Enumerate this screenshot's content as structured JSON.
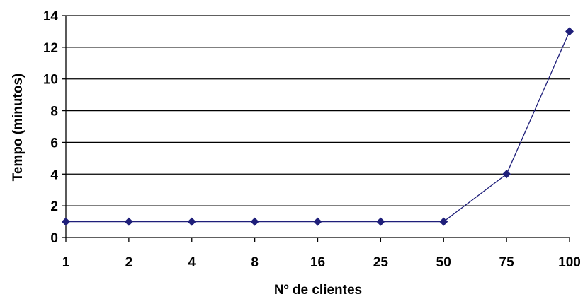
{
  "chart_data": {
    "type": "line",
    "x_categories": [
      "1",
      "2",
      "4",
      "8",
      "16",
      "25",
      "50",
      "75",
      "100"
    ],
    "series": [
      {
        "values": [
          1,
          1,
          1,
          1,
          1,
          1,
          1,
          4,
          13
        ],
        "color": "#1f1f7a"
      }
    ],
    "xlabel": "Nº de clientes",
    "ylabel": "Tempo (minutos)",
    "ylim": [
      0,
      14
    ],
    "yticks": [
      0,
      2,
      4,
      6,
      8,
      10,
      12,
      14
    ],
    "grid": "horizontal",
    "marker": "diamond"
  }
}
